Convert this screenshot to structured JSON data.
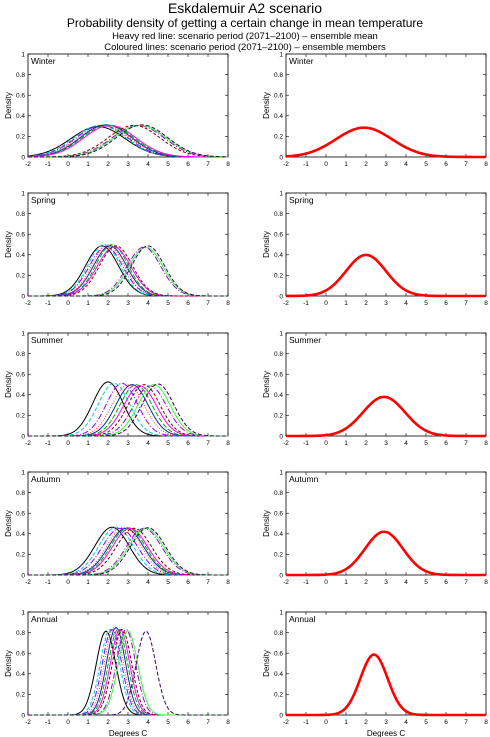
{
  "header": {
    "title": "Eskdalemuir A2 scenario",
    "subtitle": "Probability density of getting a certain change in mean temperature",
    "note_heavy": "Heavy red line: scenario period (2071–2100) – ensemble mean",
    "note_coloured": "Coloured lines: scenario period (2071–2100) – ensemble members"
  },
  "axes": {
    "ylabel": "Density",
    "xlabel": "Degrees C",
    "xlim": [
      -2,
      8
    ],
    "ylim": [
      0,
      1
    ],
    "xticks": [
      "-2",
      "-1",
      "0",
      "1",
      "2",
      "3",
      "4",
      "5",
      "6",
      "7",
      "8"
    ],
    "yticks": [
      "0",
      "0.2",
      "0.4",
      "0.6",
      "0.8",
      "1"
    ]
  },
  "colors": {
    "ensemble_mean": "#ff0000",
    "members": [
      "#000000",
      "#00d0d0",
      "#8800ff",
      "#ff4444",
      "#003399",
      "#00aa00",
      "#ff00ff",
      "#770000",
      "#9900cc",
      "#33ff33",
      "#440066"
    ]
  },
  "chart_data": [
    {
      "type": "line",
      "panel": "Winter",
      "title": "Winter",
      "members": [
        {
          "mean": 1.5,
          "sd": 1.35
        },
        {
          "mean": 1.6,
          "sd": 1.3
        },
        {
          "mean": 1.7,
          "sd": 1.3
        },
        {
          "mean": 1.8,
          "sd": 1.32
        },
        {
          "mean": 1.9,
          "sd": 1.28
        },
        {
          "mean": 2.0,
          "sd": 1.3
        },
        {
          "mean": 2.1,
          "sd": 1.3
        },
        {
          "mean": 3.3,
          "sd": 1.3
        },
        {
          "mean": 3.5,
          "sd": 1.3
        },
        {
          "mean": 3.6,
          "sd": 1.3
        },
        {
          "mean": 3.7,
          "sd": 1.28
        }
      ],
      "ensemble_mean": {
        "mean": 1.9,
        "sd": 1.4
      }
    },
    {
      "type": "line",
      "panel": "Spring",
      "title": "Spring",
      "members": [
        {
          "mean": 1.7,
          "sd": 0.82
        },
        {
          "mean": 1.8,
          "sd": 0.8
        },
        {
          "mean": 1.9,
          "sd": 0.83
        },
        {
          "mean": 2.0,
          "sd": 0.8
        },
        {
          "mean": 2.1,
          "sd": 0.82
        },
        {
          "mean": 2.2,
          "sd": 0.8
        },
        {
          "mean": 2.3,
          "sd": 0.84
        },
        {
          "mean": 2.4,
          "sd": 0.82
        },
        {
          "mean": 3.8,
          "sd": 0.84
        },
        {
          "mean": 3.9,
          "sd": 0.84
        },
        {
          "mean": 4.0,
          "sd": 0.82
        }
      ],
      "ensemble_mean": {
        "mean": 2.0,
        "sd": 1.0
      }
    },
    {
      "type": "line",
      "panel": "Summer",
      "title": "Summer",
      "members": [
        {
          "mean": 2.0,
          "sd": 0.76
        },
        {
          "mean": 2.3,
          "sd": 0.78
        },
        {
          "mean": 2.7,
          "sd": 0.78
        },
        {
          "mean": 3.0,
          "sd": 0.8
        },
        {
          "mean": 3.2,
          "sd": 0.8
        },
        {
          "mean": 3.4,
          "sd": 0.8
        },
        {
          "mean": 3.6,
          "sd": 0.82
        },
        {
          "mean": 3.8,
          "sd": 0.8
        },
        {
          "mean": 4.1,
          "sd": 0.82
        },
        {
          "mean": 4.3,
          "sd": 0.8
        },
        {
          "mean": 4.5,
          "sd": 0.79
        }
      ],
      "ensemble_mean": {
        "mean": 2.9,
        "sd": 1.05
      }
    },
    {
      "type": "line",
      "panel": "Autumn",
      "title": "Autumn",
      "members": [
        {
          "mean": 2.2,
          "sd": 0.86
        },
        {
          "mean": 2.4,
          "sd": 0.86
        },
        {
          "mean": 2.6,
          "sd": 0.88
        },
        {
          "mean": 2.8,
          "sd": 0.86
        },
        {
          "mean": 2.9,
          "sd": 0.88
        },
        {
          "mean": 3.0,
          "sd": 0.87
        },
        {
          "mean": 3.1,
          "sd": 0.88
        },
        {
          "mean": 3.3,
          "sd": 0.88
        },
        {
          "mean": 3.8,
          "sd": 0.88
        },
        {
          "mean": 3.9,
          "sd": 0.88
        },
        {
          "mean": 4.0,
          "sd": 0.87
        }
      ],
      "ensemble_mean": {
        "mean": 2.9,
        "sd": 0.95
      }
    },
    {
      "type": "line",
      "panel": "Annual",
      "title": "Annual",
      "members": [
        {
          "mean": 1.9,
          "sd": 0.49
        },
        {
          "mean": 2.1,
          "sd": 0.48
        },
        {
          "mean": 2.2,
          "sd": 0.48
        },
        {
          "mean": 2.3,
          "sd": 0.47
        },
        {
          "mean": 2.4,
          "sd": 0.47
        },
        {
          "mean": 2.5,
          "sd": 0.48
        },
        {
          "mean": 2.6,
          "sd": 0.48
        },
        {
          "mean": 2.7,
          "sd": 0.48
        },
        {
          "mean": 2.9,
          "sd": 0.48
        },
        {
          "mean": 3.0,
          "sd": 0.49
        },
        {
          "mean": 3.9,
          "sd": 0.49
        }
      ],
      "ensemble_mean": {
        "mean": 2.4,
        "sd": 0.68
      }
    }
  ]
}
